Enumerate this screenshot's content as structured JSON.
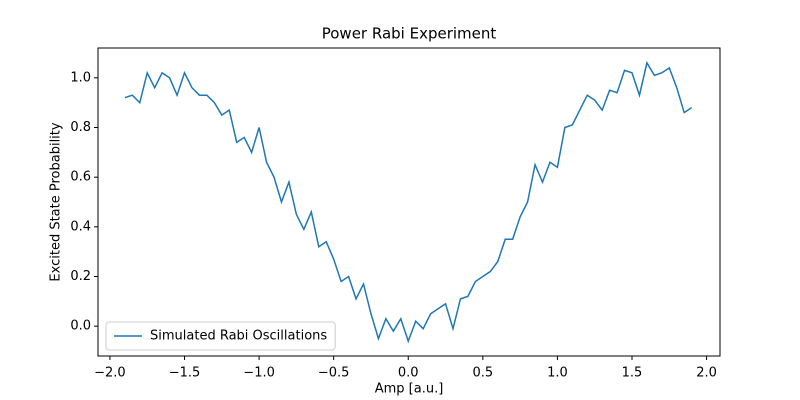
{
  "chart_data": {
    "type": "line",
    "title": "Power Rabi Experiment",
    "xlabel": "Amp [a.u.]",
    "ylabel": "Excited State Probability",
    "x": [
      -1.9,
      -1.85,
      -1.8,
      -1.75,
      -1.7,
      -1.65,
      -1.6,
      -1.55,
      -1.5,
      -1.45,
      -1.4,
      -1.35,
      -1.3,
      -1.25,
      -1.2,
      -1.15,
      -1.1,
      -1.05,
      -1.0,
      -0.95,
      -0.9,
      -0.85,
      -0.8,
      -0.75,
      -0.7,
      -0.65,
      -0.6,
      -0.55,
      -0.5,
      -0.45,
      -0.4,
      -0.35,
      -0.3,
      -0.25,
      -0.2,
      -0.15,
      -0.1,
      -0.05,
      0.0,
      0.05,
      0.1,
      0.15,
      0.2,
      0.25,
      0.3,
      0.35,
      0.4,
      0.45,
      0.5,
      0.55,
      0.6,
      0.65,
      0.7,
      0.75,
      0.8,
      0.85,
      0.9,
      0.95,
      1.0,
      1.05,
      1.1,
      1.15,
      1.2,
      1.25,
      1.3,
      1.35,
      1.4,
      1.45,
      1.5,
      1.55,
      1.6,
      1.65,
      1.7,
      1.75,
      1.8,
      1.85,
      1.9
    ],
    "series": [
      {
        "name": "Simulated Rabi Oscillations",
        "color": "#1f77b4",
        "values": [
          0.92,
          0.93,
          0.9,
          1.02,
          0.96,
          1.02,
          1.0,
          0.93,
          1.02,
          0.96,
          0.93,
          0.93,
          0.9,
          0.85,
          0.87,
          0.74,
          0.76,
          0.7,
          0.8,
          0.66,
          0.6,
          0.5,
          0.58,
          0.45,
          0.39,
          0.46,
          0.32,
          0.34,
          0.27,
          0.18,
          0.2,
          0.11,
          0.17,
          0.05,
          -0.05,
          0.03,
          -0.02,
          0.03,
          -0.06,
          0.02,
          -0.01,
          0.05,
          0.07,
          0.09,
          -0.01,
          0.11,
          0.12,
          0.18,
          0.2,
          0.22,
          0.26,
          0.35,
          0.35,
          0.44,
          0.5,
          0.65,
          0.58,
          0.66,
          0.64,
          0.8,
          0.81,
          0.87,
          0.93,
          0.91,
          0.87,
          0.95,
          0.94,
          1.03,
          1.02,
          0.93,
          1.06,
          1.01,
          1.02,
          1.04,
          0.96,
          0.86,
          0.88
        ]
      }
    ],
    "xlim": [
      -2.08,
      2.09
    ],
    "ylim": [
      -0.12,
      1.12
    ],
    "xticks": [
      {
        "value": -2.0,
        "label": "−2.0"
      },
      {
        "value": -1.5,
        "label": "−1.5"
      },
      {
        "value": -1.0,
        "label": "−1.0"
      },
      {
        "value": -0.5,
        "label": "−0.5"
      },
      {
        "value": 0.0,
        "label": "0.0"
      },
      {
        "value": 0.5,
        "label": "0.5"
      },
      {
        "value": 1.0,
        "label": "1.0"
      },
      {
        "value": 1.5,
        "label": "1.5"
      },
      {
        "value": 2.0,
        "label": "2.0"
      }
    ],
    "yticks": [
      {
        "value": 0.0,
        "label": "0.0"
      },
      {
        "value": 0.2,
        "label": "0.2"
      },
      {
        "value": 0.4,
        "label": "0.4"
      },
      {
        "value": 0.6,
        "label": "0.6"
      },
      {
        "value": 0.8,
        "label": "0.8"
      },
      {
        "value": 1.0,
        "label": "1.0"
      }
    ],
    "legend": "lower left"
  }
}
